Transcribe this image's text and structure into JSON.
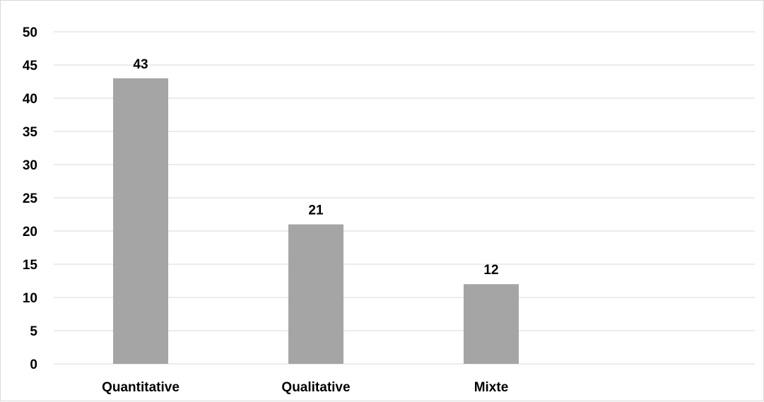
{
  "chart_data": {
    "type": "bar",
    "title": "",
    "xlabel": "",
    "ylabel": "",
    "categories": [
      "Quantitative",
      "Qualitative",
      "Mixte"
    ],
    "values": [
      43,
      21,
      12
    ],
    "data_labels": [
      "43",
      "21",
      "12"
    ],
    "ylim": [
      0,
      50
    ],
    "yticks": [
      "0",
      "5",
      "10",
      "15",
      "20",
      "25",
      "30",
      "35",
      "40",
      "45",
      "50"
    ],
    "grid": true,
    "legend": "none",
    "bar_color": "#a5a5a5",
    "grid_color": "#d9d9d9"
  }
}
